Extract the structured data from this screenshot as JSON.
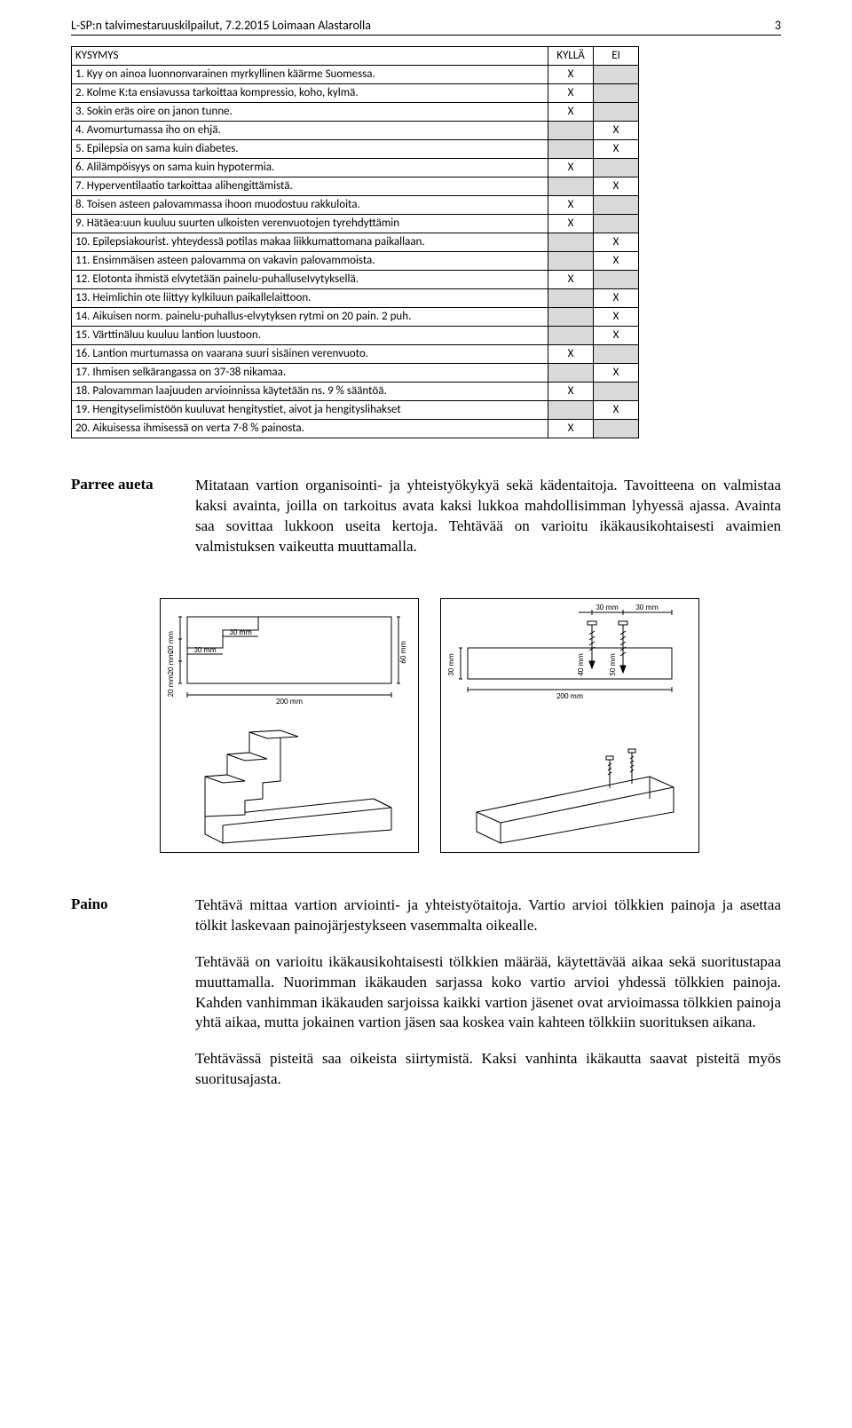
{
  "header": {
    "title": "L-SP:n talvimestaruuskilpailut, 7.2.2015 Loimaan Alastarolla",
    "page": "3"
  },
  "quiz": {
    "columns": [
      "KYSYMYS",
      "KYLLÄ",
      "EI"
    ],
    "rows": [
      {
        "q": "1. Kyy on ainoa luonnonvarainen myrkyllinen käärme Suomessa.",
        "k": "X",
        "e": ""
      },
      {
        "q": "2. Kolme K:ta ensiavussa tarkoittaa kompressio, koho, kylmä.",
        "k": "X",
        "e": ""
      },
      {
        "q": "3. Sokin eräs oire on janon tunne.",
        "k": "X",
        "e": ""
      },
      {
        "q": "4. Avomurtumassa iho on ehjä.",
        "k": "",
        "e": "X"
      },
      {
        "q": "5. Epilepsia on sama kuin diabetes.",
        "k": "",
        "e": "X"
      },
      {
        "q": "6. Alilämpöisyys on sama kuin hypotermia.",
        "k": "X",
        "e": ""
      },
      {
        "q": "7. Hyperventilaatio tarkoittaa alihengittämistä.",
        "k": "",
        "e": "X"
      },
      {
        "q": "8. Toisen asteen palovammassa ihoon muodostuu rakkuloita.",
        "k": "X",
        "e": ""
      },
      {
        "q": "9. Hätäea:uun kuuluu suurten ulkoisten verenvuotojen tyrehdyttämin",
        "k": "X",
        "e": ""
      },
      {
        "q": "10. Epilepsiakourist. yhteydessä potilas makaa liikkumattomana paikallaan.",
        "k": "",
        "e": "X"
      },
      {
        "q": "11. Ensimmäisen asteen palovamma on vakavin palovammoista.",
        "k": "",
        "e": "X"
      },
      {
        "q": "12. Elotonta ihmistä elvytetään painelu-puhalluseIvytyksellä.",
        "k": "X",
        "e": ""
      },
      {
        "q": "13. Heimlichin ote liittyy kylkiluun paikallelaittoon.",
        "k": "",
        "e": "X"
      },
      {
        "q": "14. Aikuisen norm. painelu-puhallus-elvytyksen rytmi on 20 pain. 2 puh.",
        "k": "",
        "e": "X"
      },
      {
        "q": "15. Värttinäluu kuuluu lantion luustoon.",
        "k": "",
        "e": "X"
      },
      {
        "q": "16. Lantion murtumassa on vaarana suuri sisäinen verenvuoto.",
        "k": "X",
        "e": ""
      },
      {
        "q": "17. Ihmisen selkärangassa on 37-38 nikamaa.",
        "k": "",
        "e": "X"
      },
      {
        "q": "18. Palovamman laajuuden arvioinnissa käytetään ns. 9 % sääntöä.",
        "k": "X",
        "e": ""
      },
      {
        "q": "19. Hengityselimistöön kuuluvat hengitystiet, aivot ja hengityslihakset",
        "k": "",
        "e": "X"
      },
      {
        "q": "20. Aikuisessa ihmisessä on verta 7-8 % painosta.",
        "k": "X",
        "e": ""
      }
    ]
  },
  "parree": {
    "label": "Parree aueta",
    "p1": "Mitataan vartion organisointi- ja yhteistyökykyä sekä kädentaitoja. Tavoitteena on valmistaa kaksi avainta, joilla on tarkoitus avata kaksi lukkoa mahdollisimman lyhyessä ajassa. Avainta saa sovittaa lukkoon useita kertoja. Tehtävää on varioitu ikäkausikohtaisesti avaimien valmistuksen vaikeutta muuttamalla."
  },
  "paino": {
    "label": "Paino",
    "p1": "Tehtävä mittaa vartion arviointi- ja yhteistyötaitoja. Vartio arvioi tölkkien painoja ja asettaa tölkit laskevaan painojärjestykseen vasemmalta oikealle.",
    "p2": "Tehtävää on varioitu ikäkausikohtaisesti tölkkien määrää, käytettävää aikaa sekä suoritustapaa muuttamalla. Nuorimman ikäkauden sarjassa koko vartio arvioi yhdessä tölkkien painoja. Kahden vanhimman ikäkauden sarjoissa kaikki vartion jäsenet ovat arvioimassa tölkkien painoja yhtä aikaa, mutta jokainen vartion jäsen saa koskea vain kahteen tölkkiin suorituksen aikana.",
    "p3": "Tehtävässä pisteitä saa oikeista siirtymistä. Kaksi vanhinta ikäkautta saavat pisteitä myös suoritusajasta."
  },
  "diagram_left": {
    "width_mm": "200 mm",
    "height_mm": "60 mm",
    "step_a": "20 mm",
    "step_b": "20 mm",
    "step_c": "20 mm",
    "cut1": "30 mm",
    "cut2": "30 mm"
  },
  "diagram_right": {
    "width_mm": "200 mm",
    "inset1": "30 mm",
    "inset2": "30 mm",
    "h1": "30 mm",
    "h2": "40 mm",
    "h3": "50 mm"
  },
  "colors": {
    "line": "#000000",
    "bg": "#ffffff",
    "shade": "#d9d9d9"
  }
}
